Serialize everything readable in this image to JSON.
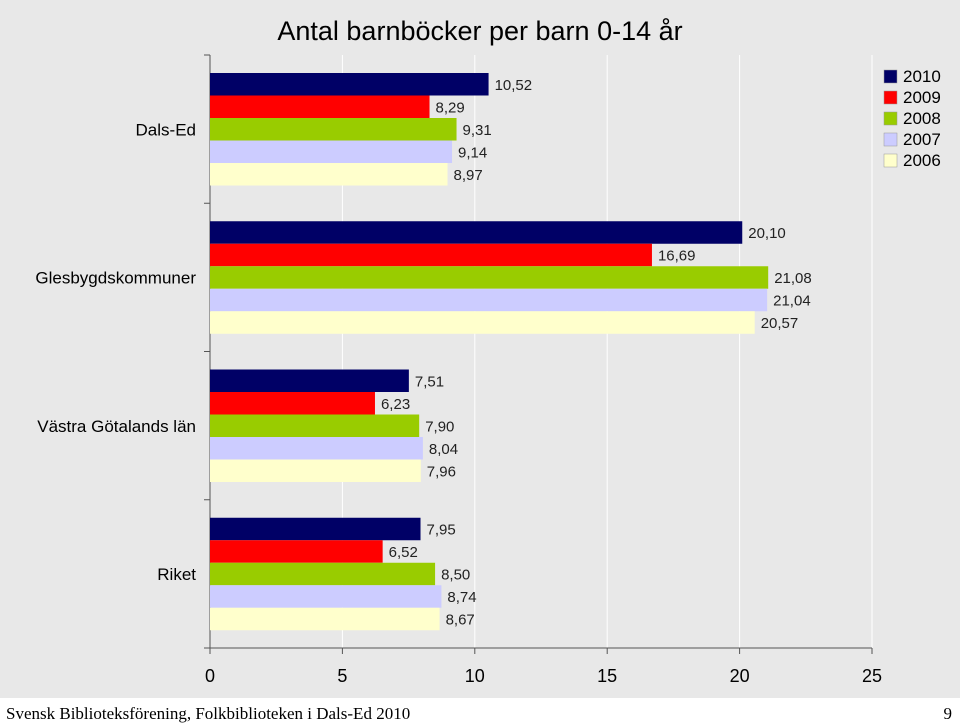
{
  "chart_data": {
    "type": "bar",
    "orientation": "horizontal",
    "title": "Antal barnböcker per barn 0-14 år",
    "categories": [
      "Dals-Ed",
      "Glesbygdskommuner",
      "Västra Götalands län",
      "Riket"
    ],
    "series": [
      {
        "name": "2010",
        "color": "#000066",
        "values": [
          10.52,
          20.1,
          7.51,
          7.95
        ],
        "labels": [
          "10,52",
          "20,10",
          "7,51",
          "7,95"
        ]
      },
      {
        "name": "2009",
        "color": "#ff0000",
        "values": [
          8.29,
          16.69,
          6.23,
          6.52
        ],
        "labels": [
          "8,29",
          "16,69",
          "6,23",
          "6,52"
        ]
      },
      {
        "name": "2008",
        "color": "#99cc00",
        "values": [
          9.31,
          21.08,
          7.9,
          8.5
        ],
        "labels": [
          "9,31",
          "21,08",
          "7,90",
          "8,50"
        ]
      },
      {
        "name": "2007",
        "color": "#ccccff",
        "values": [
          9.14,
          21.04,
          8.04,
          8.74
        ],
        "labels": [
          "9,14",
          "21,04",
          "8,04",
          "8,74"
        ]
      },
      {
        "name": "2006",
        "color": "#ffffcc",
        "values": [
          8.97,
          20.57,
          7.96,
          8.67
        ],
        "labels": [
          "8,97",
          "20,57",
          "7,96",
          "8,67"
        ]
      }
    ],
    "xlim": [
      0,
      25
    ],
    "xticks": [
      "0",
      "5",
      "10",
      "15",
      "20",
      "25"
    ],
    "grid": true,
    "legend": "top-right"
  },
  "footer": {
    "source": "Svensk Biblioteksförening, Folkbiblioteken i Dals-Ed 2010",
    "page_number": "9"
  }
}
